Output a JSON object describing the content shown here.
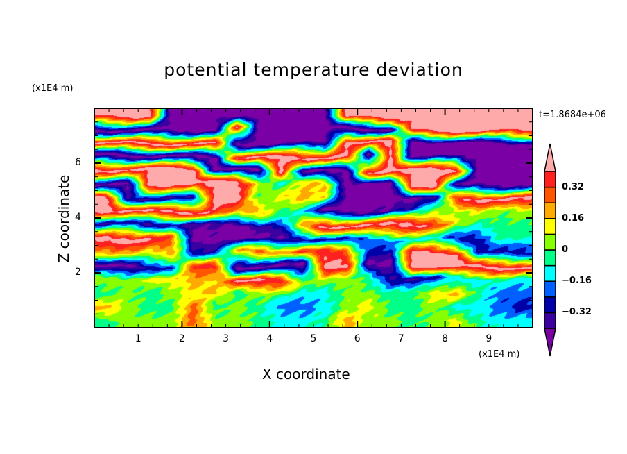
{
  "chart_data": {
    "type": "heatmap",
    "title": "potential temperature deviation",
    "xlabel": "X coordinate",
    "ylabel": "Z coordinate",
    "x_unit": "(x1E4 m)",
    "y_unit": "(x1E4 m)",
    "annotation": "t=1.8684e+06",
    "xlim": [
      0,
      10
    ],
    "ylim": [
      0,
      8
    ],
    "x_ticks": [
      "1",
      "2",
      "3",
      "4",
      "5",
      "6",
      "7",
      "8",
      "9"
    ],
    "y_ticks": [
      "2",
      "4",
      "6"
    ],
    "levels": [
      -0.4,
      -0.32,
      -0.24,
      -0.16,
      -0.08,
      0,
      0.08,
      0.16,
      0.24,
      0.32,
      0.4
    ],
    "colorbar_labels": [
      "0.32",
      "0.16",
      "0",
      "-0.16",
      "-0.32"
    ],
    "colorbar_label_values": [
      0.32,
      0.16,
      0,
      -0.16,
      -0.32
    ],
    "colors": [
      "#7a00a6",
      "#3a00a0",
      "#0000a8",
      "#0060ff",
      "#00ffff",
      "#00ff88",
      "#88ff00",
      "#ffff00",
      "#ffaa00",
      "#ff5500",
      "#ff2020",
      "#ffaaaa"
    ],
    "grid_note_rows_top_to_bottom": true,
    "grid": [
      [
        0.45,
        0.45,
        0.45,
        -0.45,
        -0.45,
        -0.45,
        -0.45,
        -0.45,
        -0.45,
        -0.45,
        -0.45,
        0.45,
        0.45,
        0.45,
        0.45,
        0.45,
        0.45,
        0.45,
        0.45,
        0.45
      ],
      [
        -0.45,
        -0.45,
        -0.45,
        -0.45,
        -0.45,
        -0.45,
        0.45,
        -0.45,
        -0.45,
        -0.45,
        -0.45,
        -0.45,
        -0.45,
        -0.45,
        0.45,
        0.45,
        0.45,
        0.45,
        0.45,
        0.45
      ],
      [
        0.45,
        0.45,
        0.45,
        0.45,
        0.45,
        0.45,
        -0.45,
        -0.45,
        -0.45,
        -0.45,
        -0.45,
        0.45,
        0.45,
        0.45,
        -0.45,
        -0.45,
        -0.45,
        -0.45,
        -0.45,
        -0.45
      ],
      [
        -0.45,
        -0.45,
        -0.45,
        -0.45,
        -0.45,
        -0.45,
        0.45,
        0.45,
        0.45,
        0.45,
        0.45,
        0.45,
        -0.45,
        0.45,
        -0.45,
        -0.45,
        -0.45,
        -0.45,
        -0.45,
        -0.45
      ],
      [
        0.45,
        0.45,
        0.45,
        0.45,
        0.45,
        -0.45,
        -0.45,
        -0.45,
        0.45,
        -0.45,
        -0.45,
        -0.45,
        0.45,
        0.45,
        0.45,
        0.45,
        0.45,
        -0.45,
        -0.45,
        -0.45
      ],
      [
        -0.45,
        -0.45,
        0.45,
        0.45,
        0.45,
        0.45,
        0.45,
        0.12,
        -0.12,
        0.12,
        0.2,
        -0.45,
        -0.45,
        -0.45,
        0.45,
        0.45,
        -0.45,
        -0.45,
        -0.45,
        -0.45
      ],
      [
        0.45,
        -0.3,
        -0.36,
        -0.36,
        -0.3,
        0.45,
        0.45,
        -0.04,
        0.12,
        0.2,
        0.12,
        -0.45,
        -0.45,
        -0.45,
        -0.45,
        -0.36,
        0.36,
        0.45,
        0.45,
        0.45
      ],
      [
        0.45,
        0.45,
        0.45,
        0.45,
        0.45,
        0.36,
        0.2,
        0.2,
        -0.04,
        -0.12,
        -0.45,
        -0.45,
        -0.45,
        -0.36,
        -0.28,
        0.04,
        0.04,
        0.12,
        0.04,
        0.04
      ],
      [
        -0.36,
        -0.28,
        -0.36,
        -0.3,
        -0.36,
        -0.36,
        -0.45,
        -0.36,
        -0.28,
        0.2,
        0.45,
        0.45,
        0.45,
        0.45,
        0.45,
        0.36,
        0.12,
        -0.04,
        -0.04,
        -0.04
      ],
      [
        0.45,
        0.45,
        0.45,
        0.3,
        -0.45,
        -0.45,
        -0.45,
        -0.45,
        -0.4,
        -0.28,
        -0.3,
        -0.28,
        -0.2,
        -0.2,
        -0.12,
        -0.12,
        -0.28,
        -0.3,
        -0.04,
        -0.04
      ],
      [
        0.12,
        0.2,
        0.12,
        0.2,
        -0.28,
        -0.3,
        0.2,
        0.28,
        0.2,
        0.36,
        0.36,
        0.28,
        -0.28,
        -0.3,
        0.45,
        0.45,
        0.45,
        -0.28,
        -0.3,
        -0.28
      ],
      [
        -0.45,
        -0.45,
        -0.3,
        -0.28,
        0.36,
        0.36,
        -0.45,
        -0.45,
        -0.45,
        -0.45,
        0.45,
        0.45,
        -0.45,
        -0.45,
        0.45,
        0.45,
        0.45,
        0.45,
        0.45,
        0.45
      ],
      [
        0.04,
        0.04,
        0.12,
        0.12,
        0.2,
        0.12,
        0.45,
        0.45,
        0.36,
        0.04,
        0.04,
        0.04,
        -0.04,
        -0.3,
        -0.36,
        -0.3,
        -0.12,
        -0.12,
        -0.04,
        -0.12
      ],
      [
        -0.04,
        0.04,
        -0.04,
        0.04,
        0.12,
        0.2,
        -0.04,
        0.04,
        -0.04,
        -0.12,
        -0.12,
        0.04,
        0.04,
        -0.04,
        -0.04,
        0.12,
        0.2,
        -0.04,
        -0.2,
        -0.2
      ],
      [
        0.2,
        0.04,
        -0.04,
        -0.04,
        0.28,
        -0.04,
        0.04,
        -0.04,
        -0.2,
        -0.2,
        -0.12,
        0.04,
        0.12,
        -0.04,
        -0.04,
        0.04,
        -0.12,
        -0.12,
        -0.2,
        -0.28
      ],
      [
        -0.04,
        0.04,
        0.04,
        0.04,
        0.28,
        0.04,
        0.04,
        -0.04,
        -0.12,
        -0.12,
        -0.04,
        0.2,
        0.04,
        0.04,
        -0.04,
        0.04,
        0.12,
        -0.04,
        -0.12,
        -0.12
      ]
    ]
  }
}
